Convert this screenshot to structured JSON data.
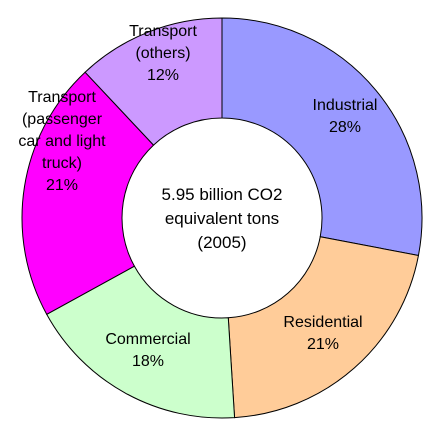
{
  "chart_data": {
    "type": "pie",
    "donut": true,
    "center_text": [
      "5.95 billion CO2",
      "equivalent tons",
      "(2005)"
    ],
    "slices": [
      {
        "name": "Industrial",
        "value": 28,
        "color": "#9999ff",
        "label_lines": [
          "Industrial",
          "28%"
        ]
      },
      {
        "name": "Residential",
        "value": 21,
        "color": "#ffcc99",
        "label_lines": [
          "Residential",
          "21%"
        ]
      },
      {
        "name": "Commercial",
        "value": 18,
        "color": "#ccffcc",
        "label_lines": [
          "Commercial",
          "18%"
        ]
      },
      {
        "name": "Transport (passenger car and light truck)",
        "value": 21,
        "color": "#ff00ff",
        "label_lines": [
          "Transport",
          "(passenger",
          "car and light",
          "truck)",
          "21%"
        ]
      },
      {
        "name": "Transport (others)",
        "value": 12,
        "color": "#cc99ff",
        "label_lines": [
          "Transport",
          "(others)",
          "12%"
        ]
      }
    ],
    "start": "12 o'clock",
    "direction": "clockwise"
  }
}
